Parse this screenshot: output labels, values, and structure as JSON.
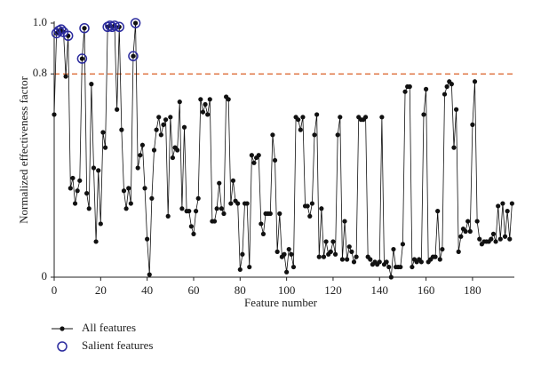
{
  "chart_data": {
    "type": "line",
    "xlabel": "Feature number",
    "ylabel": "Normalized effectiveness factor",
    "xlim": [
      0,
      198
    ],
    "ylim": [
      0,
      1
    ],
    "xticks": [
      0,
      20,
      40,
      60,
      80,
      100,
      120,
      140,
      160,
      180
    ],
    "yticks": [
      0,
      0.8,
      {
        "value": 1,
        "label": "1.0"
      }
    ],
    "reference_line": {
      "value": 0.8,
      "color": "#e07a4a"
    },
    "series": [
      {
        "name": "All features",
        "color": "#111111",
        "x": [
          0,
          1,
          2,
          3,
          4,
          5,
          6,
          7,
          8,
          9,
          10,
          11,
          12,
          13,
          14,
          15,
          16,
          17,
          18,
          19,
          20,
          21,
          22,
          23,
          24,
          25,
          26,
          27,
          28,
          29,
          30,
          31,
          32,
          33,
          34,
          35,
          36,
          37,
          38,
          39,
          40,
          41,
          42,
          43,
          44,
          45,
          46,
          47,
          48,
          49,
          50,
          51,
          52,
          53,
          54,
          55,
          56,
          57,
          58,
          59,
          60,
          61,
          62,
          63,
          64,
          65,
          66,
          67,
          68,
          69,
          70,
          71,
          72,
          73,
          74,
          75,
          76,
          77,
          78,
          79,
          80,
          81,
          82,
          83,
          84,
          85,
          86,
          87,
          88,
          89,
          90,
          91,
          92,
          93,
          94,
          95,
          96,
          97,
          98,
          99,
          100,
          101,
          102,
          103,
          104,
          105,
          106,
          107,
          108,
          109,
          110,
          111,
          112,
          113,
          114,
          115,
          116,
          117,
          118,
          119,
          120,
          121,
          122,
          123,
          124,
          125,
          126,
          127,
          128,
          129,
          130,
          131,
          132,
          133,
          134,
          135,
          136,
          137,
          138,
          139,
          140,
          141,
          142,
          143,
          144,
          145,
          146,
          147,
          148,
          149,
          150,
          151,
          152,
          153,
          154,
          155,
          156,
          157,
          158,
          159,
          160,
          161,
          162,
          163,
          164,
          165,
          166,
          167,
          168,
          169,
          170,
          171,
          172,
          173,
          174,
          175,
          176,
          177,
          178,
          179,
          180,
          181,
          182,
          183,
          184,
          185,
          186,
          187,
          188,
          189,
          190,
          191,
          192,
          193,
          194,
          195,
          196,
          197
        ],
        "values": [
          0.64,
          0.96,
          0.97,
          0.975,
          0.965,
          0.79,
          0.95,
          0.35,
          0.39,
          0.29,
          0.34,
          0.38,
          0.86,
          0.98,
          0.33,
          0.27,
          0.76,
          0.43,
          0.14,
          0.42,
          0.21,
          0.57,
          0.51,
          0.985,
          0.99,
          0.985,
          0.99,
          0.66,
          0.985,
          0.58,
          0.34,
          0.27,
          0.35,
          0.29,
          0.87,
          1.0,
          0.43,
          0.48,
          0.52,
          0.35,
          0.15,
          0.01,
          0.31,
          0.5,
          0.58,
          0.63,
          0.56,
          0.6,
          0.62,
          0.24,
          0.63,
          0.47,
          0.51,
          0.5,
          0.69,
          0.27,
          0.59,
          0.26,
          0.26,
          0.2,
          0.17,
          0.26,
          0.31,
          0.7,
          0.65,
          0.68,
          0.64,
          0.7,
          0.22,
          0.22,
          0.27,
          0.37,
          0.27,
          0.25,
          0.71,
          0.7,
          0.29,
          0.38,
          0.3,
          0.29,
          0.03,
          0.09,
          0.29,
          0.29,
          0.04,
          0.48,
          0.45,
          0.47,
          0.48,
          0.21,
          0.17,
          0.25,
          0.25,
          0.25,
          0.56,
          0.46,
          0.1,
          0.25,
          0.08,
          0.09,
          0.02,
          0.11,
          0.09,
          0.04,
          0.63,
          0.62,
          0.58,
          0.63,
          0.28,
          0.28,
          0.24,
          0.29,
          0.56,
          0.64,
          0.08,
          0.27,
          0.08,
          0.14,
          0.09,
          0.1,
          0.14,
          0.09,
          0.56,
          0.63,
          0.07,
          0.22,
          0.07,
          0.12,
          0.1,
          0.06,
          0.08,
          0.63,
          0.62,
          0.62,
          0.63,
          0.08,
          0.07,
          0.05,
          0.06,
          0.05,
          0.06,
          0.63,
          0.05,
          0.06,
          0.04,
          0.0,
          0.11,
          0.04,
          0.04,
          0.04,
          0.13,
          0.73,
          0.75,
          0.75,
          0.04,
          0.07,
          0.06,
          0.07,
          0.06,
          0.64,
          0.74,
          0.06,
          0.07,
          0.08,
          0.08,
          0.26,
          0.07,
          0.11,
          0.72,
          0.75,
          0.77,
          0.76,
          0.51,
          0.66,
          0.1,
          0.16,
          0.19,
          0.18,
          0.22,
          0.18,
          0.6,
          0.77,
          0.22,
          0.15,
          0.13,
          0.14,
          0.14,
          0.14,
          0.15,
          0.17,
          0.14,
          0.28,
          0.15,
          0.29,
          0.16,
          0.26,
          0.15,
          0.29
        ]
      },
      {
        "name": "Salient features",
        "color": "#2b2b9e",
        "marker": "ring",
        "x": [
          1,
          2,
          3,
          4,
          6,
          12,
          13,
          23,
          24,
          25,
          26,
          28,
          34,
          35
        ],
        "values": [
          0.96,
          0.97,
          0.975,
          0.965,
          0.95,
          0.86,
          0.98,
          0.985,
          0.99,
          0.985,
          0.99,
          0.985,
          0.87,
          1.0
        ]
      }
    ]
  }
}
